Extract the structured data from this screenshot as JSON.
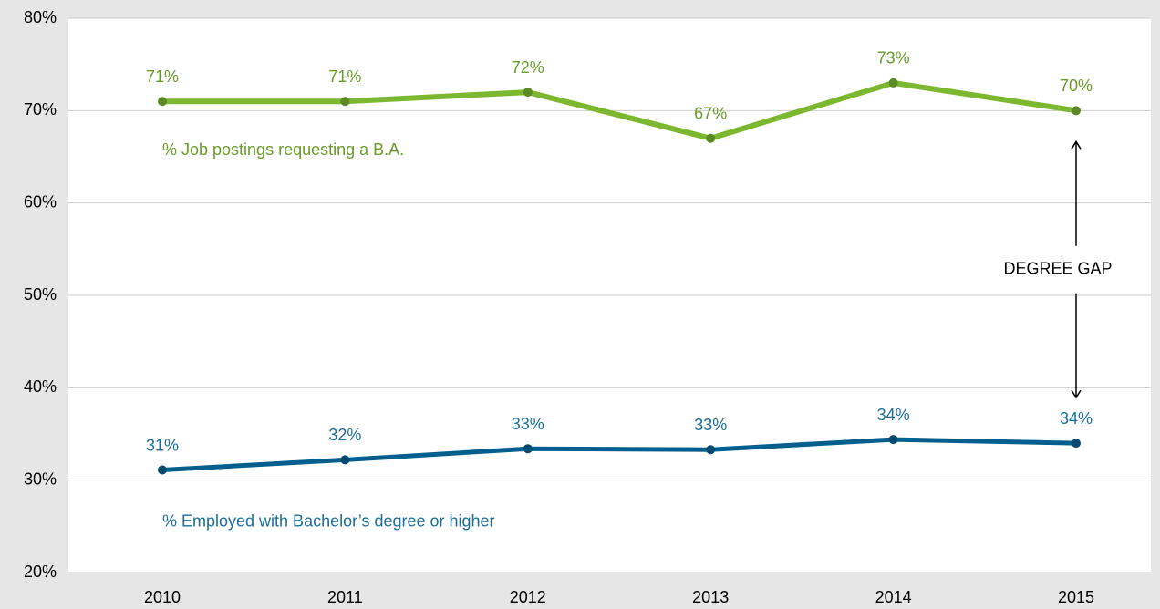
{
  "chart_data": {
    "type": "line",
    "categories": [
      "2010",
      "2011",
      "2012",
      "2013",
      "2014",
      "2015"
    ],
    "series": [
      {
        "name": "% Job postings requesting a B.A.",
        "color": "#7cb82f",
        "marker_color": "#5a8a24",
        "label_color": "#6a9a2a",
        "values": [
          71,
          71,
          72,
          67,
          73,
          70
        ],
        "value_labels": [
          "71%",
          "71%",
          "72%",
          "67%",
          "73%",
          "70%"
        ]
      },
      {
        "name": "% Employed with Bachelor’s degree or higher",
        "color": "#005f8c",
        "marker_color": "#004a6e",
        "label_color": "#1a6e98",
        "values": [
          31.1,
          32.2,
          33.4,
          33.3,
          34.4,
          34.0
        ],
        "value_labels": [
          "31%",
          "32%",
          "33%",
          "33%",
          "34%",
          "34%"
        ]
      }
    ],
    "ylim": [
      20,
      80
    ],
    "yticks": [
      {
        "value": 20,
        "label": "20%"
      },
      {
        "value": 30,
        "label": "30%"
      },
      {
        "value": 40,
        "label": "40%"
      },
      {
        "value": 50,
        "label": "50%"
      },
      {
        "value": 60,
        "label": "60%"
      },
      {
        "value": 70,
        "label": "70%"
      },
      {
        "value": 80,
        "label": "80%"
      }
    ],
    "grid": true,
    "annotation": "DEGREE GAP"
  }
}
